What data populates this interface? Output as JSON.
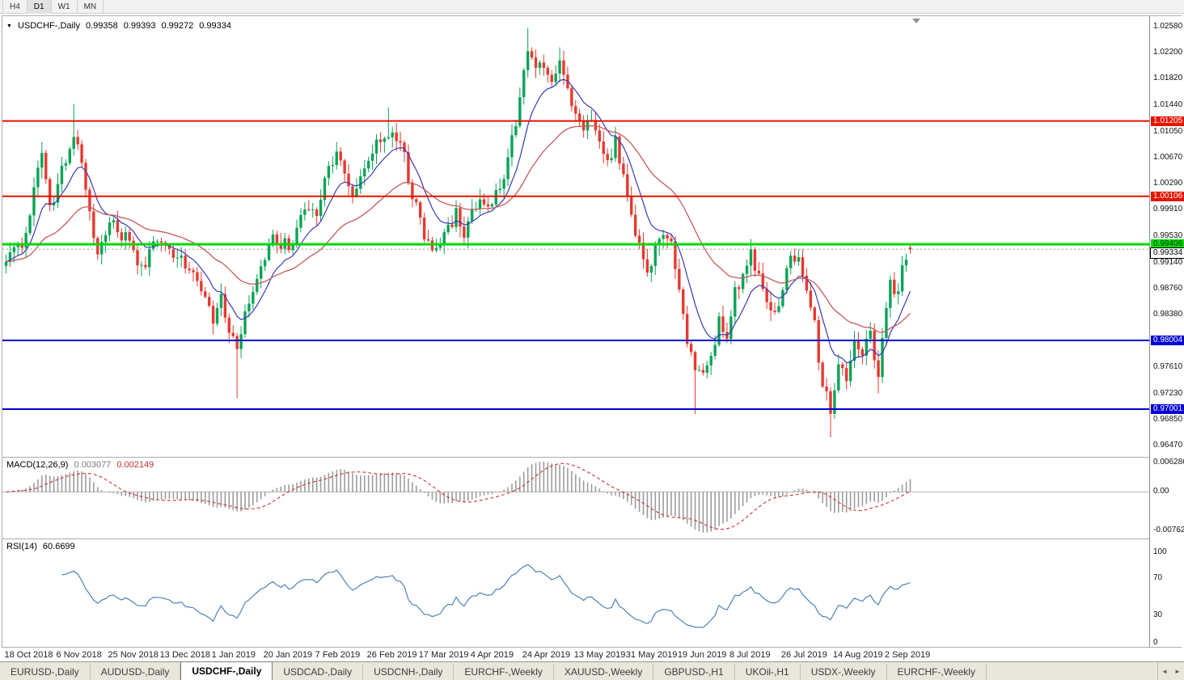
{
  "toolbar": {
    "timeframes": [
      "H4",
      "D1",
      "W1",
      "MN"
    ],
    "active": "D1"
  },
  "header": {
    "marker": "▼",
    "symbol": "USDCHF-,Daily",
    "open": "0.99358",
    "high": "0.99393",
    "low": "0.99272",
    "close": "0.99334"
  },
  "price_axis": {
    "ticks": [
      {
        "label": "1.02580",
        "value": 1.0258
      },
      {
        "label": "1.02200",
        "value": 1.022
      },
      {
        "label": "1.01820",
        "value": 1.0182
      },
      {
        "label": "1.01440",
        "value": 1.0144
      },
      {
        "label": "1.01050",
        "value": 1.0105
      },
      {
        "label": "1.00670",
        "value": 1.0067
      },
      {
        "label": "1.00290",
        "value": 1.0029
      },
      {
        "label": "0.99910",
        "value": 0.9991
      },
      {
        "label": "0.99530",
        "value": 0.9953
      },
      {
        "label": "0.99140",
        "value": 0.9914
      },
      {
        "label": "0.98760",
        "value": 0.9876
      },
      {
        "label": "0.98380",
        "value": 0.9838
      },
      {
        "label": "0.97610",
        "value": 0.9761
      },
      {
        "label": "0.97230",
        "value": 0.9723
      },
      {
        "label": "0.96850",
        "value": 0.9685
      },
      {
        "label": "0.96470",
        "value": 0.9647
      }
    ]
  },
  "levels": [
    {
      "price": 1.01205,
      "label": "1.01205",
      "color": "#e51400",
      "text": "#ffffff",
      "width": 2
    },
    {
      "price": 1.00106,
      "label": "1.00106",
      "color": "#e51400",
      "text": "#ffffff",
      "width": 2
    },
    {
      "price": 0.99406,
      "label": "0.99406",
      "color": "#00d900",
      "text": "#003300",
      "width": 3
    },
    {
      "price": 0.98004,
      "label": "0.98004",
      "color": "#0000d4",
      "text": "#ffffff",
      "width": 2
    },
    {
      "price": 0.97001,
      "label": "0.97001",
      "color": "#0000d4",
      "text": "#ffffff",
      "width": 2
    }
  ],
  "current_price": {
    "label": "0.99334",
    "value": 0.99334
  },
  "panels": {
    "macd": {
      "title": "MACD(12,26,9)",
      "v1": "0.003077",
      "v2": "0.002149",
      "axis": [
        {
          "label": "0.006286",
          "value": 0.006286
        },
        {
          "label": "0.00",
          "value": 0
        },
        {
          "label": "-0.00762",
          "value": -0.00762
        }
      ],
      "range": [
        -0.0078,
        0.0064
      ]
    },
    "rsi": {
      "title": "RSI(14)",
      "value": "60.6699",
      "axis": [
        {
          "label": "100",
          "value": 100
        },
        {
          "label": "70",
          "value": 70
        },
        {
          "label": "30",
          "value": 30
        },
        {
          "label": "0",
          "value": 0
        }
      ]
    }
  },
  "tabs": {
    "items": [
      "EURUSD-,Daily",
      "AUDUSD-,Daily",
      "USDCHF-,Daily",
      "USDCAD-,Daily",
      "USDCNH-,Daily",
      "EURCHF-,Weekly",
      "XAUUSD-,Weekly",
      "GBPUSD-,H1",
      "UKOil-,H1",
      "USDX-,Weekly",
      "EURCHF-,Weekly"
    ],
    "active_index": 2,
    "scroll_left": "◄",
    "scroll_right": "►"
  },
  "chart_data": {
    "type": "candlestick",
    "title": "USDCHF-,Daily",
    "symbol": "USDCHF",
    "timeframe": "Daily",
    "bar_count": 228,
    "bars_per_label": 13,
    "y_range": [
      0.9647,
      1.0258
    ],
    "x_labels": [
      "18 Oct 2018",
      "6 Nov 2018",
      "25 Nov 2018",
      "13 Dec 2018",
      "1 Jan 2019",
      "20 Jan 2019",
      "7 Feb 2019",
      "26 Feb 2019",
      "17 Mar 2019",
      "4 Apr 2019",
      "24 Apr 2019",
      "13 May 2019",
      "31 May 2019",
      "19 Jun 2019",
      "8 Jul 2019",
      "26 Jul 2019",
      "14 Aug 2019",
      "2 Sep 2019"
    ],
    "close_anchors": [
      [
        0,
        0.9915
      ],
      [
        2,
        0.9945
      ],
      [
        4,
        0.9928
      ],
      [
        7,
        1.002
      ],
      [
        9,
        1.0078
      ],
      [
        11,
        0.999
      ],
      [
        14,
        1.0052
      ],
      [
        17,
        1.0092
      ],
      [
        19,
        1.0062
      ],
      [
        21,
        0.999
      ],
      [
        23,
        0.9928
      ],
      [
        26,
        0.9972
      ],
      [
        29,
        0.9958
      ],
      [
        31,
        0.9948
      ],
      [
        34,
        0.99
      ],
      [
        36,
        0.9936
      ],
      [
        39,
        0.9952
      ],
      [
        42,
        0.993
      ],
      [
        45,
        0.9912
      ],
      [
        48,
        0.9888
      ],
      [
        50,
        0.9852
      ],
      [
        52,
        0.9838
      ],
      [
        54,
        0.9868
      ],
      [
        56,
        0.982
      ],
      [
        58,
        0.9792
      ],
      [
        60,
        0.9845
      ],
      [
        62,
        0.9872
      ],
      [
        65,
        0.992
      ],
      [
        67,
        0.9958
      ],
      [
        69,
        0.9942
      ],
      [
        71,
        0.9936
      ],
      [
        73,
        0.9962
      ],
      [
        75,
        0.9994
      ],
      [
        77,
        0.998
      ],
      [
        79,
        1.0002
      ],
      [
        81,
        1.0058
      ],
      [
        83,
        1.0068
      ],
      [
        85,
        1.004
      ],
      [
        87,
        1.0005
      ],
      [
        89,
        1.0045
      ],
      [
        92,
        1.0075
      ],
      [
        95,
        1.0098
      ],
      [
        97,
        1.0105
      ],
      [
        99,
        1.0085
      ],
      [
        101,
        1.004
      ],
      [
        103,
        0.9998
      ],
      [
        105,
        0.9952
      ],
      [
        107,
        0.993
      ],
      [
        109,
        0.9942
      ],
      [
        111,
        0.9968
      ],
      [
        113,
        0.9985
      ],
      [
        115,
        0.9962
      ],
      [
        117,
        0.9985
      ],
      [
        119,
        1.0005
      ],
      [
        121,
        0.9995
      ],
      [
        123,
        1.001
      ],
      [
        125,
        1.0042
      ],
      [
        127,
        1.009
      ],
      [
        129,
        1.016
      ],
      [
        131,
        1.0222
      ],
      [
        133,
        1.0195
      ],
      [
        135,
        1.0205
      ],
      [
        137,
        1.0168
      ],
      [
        139,
        1.021
      ],
      [
        141,
        1.0172
      ],
      [
        143,
        1.013
      ],
      [
        145,
        1.0108
      ],
      [
        147,
        1.0128
      ],
      [
        149,
        1.0092
      ],
      [
        151,
        1.0062
      ],
      [
        153,
        1.0088
      ],
      [
        155,
        1.004
      ],
      [
        157,
        0.9988
      ],
      [
        159,
        0.9938
      ],
      [
        161,
        0.9898
      ],
      [
        163,
        0.9928
      ],
      [
        165,
        0.9962
      ],
      [
        167,
        0.994
      ],
      [
        169,
        0.9868
      ],
      [
        171,
        0.98
      ],
      [
        173,
        0.976
      ],
      [
        175,
        0.9748
      ],
      [
        177,
        0.9782
      ],
      [
        179,
        0.9832
      ],
      [
        181,
        0.9805
      ],
      [
        183,
        0.9865
      ],
      [
        185,
        0.9898
      ],
      [
        187,
        0.9928
      ],
      [
        189,
        0.9895
      ],
      [
        191,
        0.9858
      ],
      [
        193,
        0.9842
      ],
      [
        195,
        0.9878
      ],
      [
        197,
        0.9918
      ],
      [
        199,
        0.9922
      ],
      [
        201,
        0.9872
      ],
      [
        203,
        0.982
      ],
      [
        205,
        0.9735
      ],
      [
        207,
        0.97
      ],
      [
        209,
        0.976
      ],
      [
        211,
        0.9748
      ],
      [
        213,
        0.9792
      ],
      [
        215,
        0.9775
      ],
      [
        217,
        0.9812
      ],
      [
        219,
        0.9745
      ],
      [
        221,
        0.9852
      ],
      [
        222,
        0.9888
      ],
      [
        223,
        0.9858
      ],
      [
        224,
        0.9875
      ],
      [
        225,
        0.9905
      ],
      [
        226,
        0.9922
      ],
      [
        227,
        0.99334
      ]
    ],
    "wick_extremes": [
      [
        9,
        "h",
        1.009
      ],
      [
        17,
        "h",
        1.0145
      ],
      [
        58,
        "l",
        0.9716
      ],
      [
        96,
        "h",
        1.014
      ],
      [
        131,
        "h",
        1.0256
      ],
      [
        139,
        "h",
        1.0228
      ],
      [
        173,
        "l",
        0.9693
      ],
      [
        207,
        "l",
        0.9659
      ],
      [
        219,
        "l",
        0.9723
      ]
    ],
    "last_bar": {
      "open": 0.99358,
      "high": 0.99393,
      "low": 0.99272,
      "close": 0.99334
    },
    "overlays": [
      {
        "name": "ma-fast",
        "period": 10,
        "color": "#3a3ab8"
      },
      {
        "name": "ma-slow",
        "period": 34,
        "color": "#c65a5a"
      }
    ],
    "h_levels": [
      1.01205,
      1.00106,
      0.99406,
      0.98004,
      0.97001
    ],
    "indicators": [
      {
        "name": "MACD",
        "params": [
          12,
          26,
          9
        ],
        "values": [
          0.003077,
          0.002149
        ]
      },
      {
        "name": "RSI",
        "params": [
          14
        ],
        "value": 60.6699
      }
    ]
  },
  "colors": {
    "up": "#0aa356",
    "down": "#e8382f",
    "macd_hist": "#9c9c9c",
    "macd_signal": "#cc3333",
    "rsi": "#4d82b8",
    "current_line": "#9a9a9a",
    "shift_marker": "#8f8f8f"
  }
}
